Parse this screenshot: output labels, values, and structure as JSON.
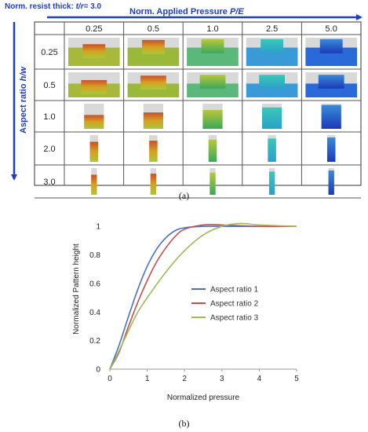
{
  "panel_a": {
    "title_prefix": "Norm. resist thick: ",
    "title_param": "t/r",
    "title_value": "= 3.0",
    "applied_pressure_label": "Norm. Applied Pressure ",
    "applied_pressure_param": "P/E",
    "aspect_ratio_label": "Aspect ratio ",
    "aspect_ratio_param": "h/w",
    "columns": [
      "0.25",
      "0.5",
      "1.0",
      "2.5",
      "5.0"
    ],
    "rows": [
      "0.25",
      "0.5",
      "1.0",
      "2.0",
      "3.0"
    ],
    "caption": "(a)",
    "colors": {
      "arrow": "#1f3fbf",
      "grid": "#555555"
    }
  },
  "chart_data": {
    "type": "line",
    "caption": "(b)",
    "xlabel": "Normalized pressure",
    "ylabel": "Normalized Pattern height",
    "xlim": [
      0,
      5
    ],
    "ylim": [
      0,
      1.1
    ],
    "xticks": [
      "0",
      "1",
      "2",
      "3",
      "4",
      "5"
    ],
    "yticks": [
      "0",
      "0.2",
      "0.4",
      "0.6",
      "0.8",
      "1"
    ],
    "grid": false,
    "legend_position": "center-right",
    "series": [
      {
        "name": "Aspect ratio 1",
        "color": "#4472c4",
        "x": [
          0,
          0.25,
          0.5,
          0.75,
          1.0,
          1.25,
          1.5,
          1.75,
          2.0,
          2.5,
          3.0,
          4.0,
          5.0
        ],
        "y": [
          0,
          0.17,
          0.37,
          0.56,
          0.72,
          0.84,
          0.92,
          0.97,
          0.99,
          1.0,
          1.0,
          1.0,
          1.0
        ]
      },
      {
        "name": "Aspect ratio 2",
        "color": "#c0504d",
        "x": [
          0,
          0.25,
          0.5,
          0.75,
          1.0,
          1.25,
          1.5,
          1.75,
          2.0,
          2.5,
          3.0,
          4.0,
          5.0
        ],
        "y": [
          0,
          0.12,
          0.3,
          0.47,
          0.62,
          0.75,
          0.85,
          0.93,
          0.98,
          1.01,
          1.01,
          1.0,
          1.0
        ]
      },
      {
        "name": "Aspect ratio 3",
        "color": "#9bbb59",
        "x": [
          0,
          0.25,
          0.5,
          0.75,
          1.0,
          1.5,
          2.0,
          2.5,
          3.0,
          3.5,
          4.0,
          5.0
        ],
        "y": [
          0,
          0.13,
          0.27,
          0.4,
          0.5,
          0.68,
          0.83,
          0.94,
          1.0,
          1.02,
          1.01,
          1.0
        ]
      }
    ]
  }
}
